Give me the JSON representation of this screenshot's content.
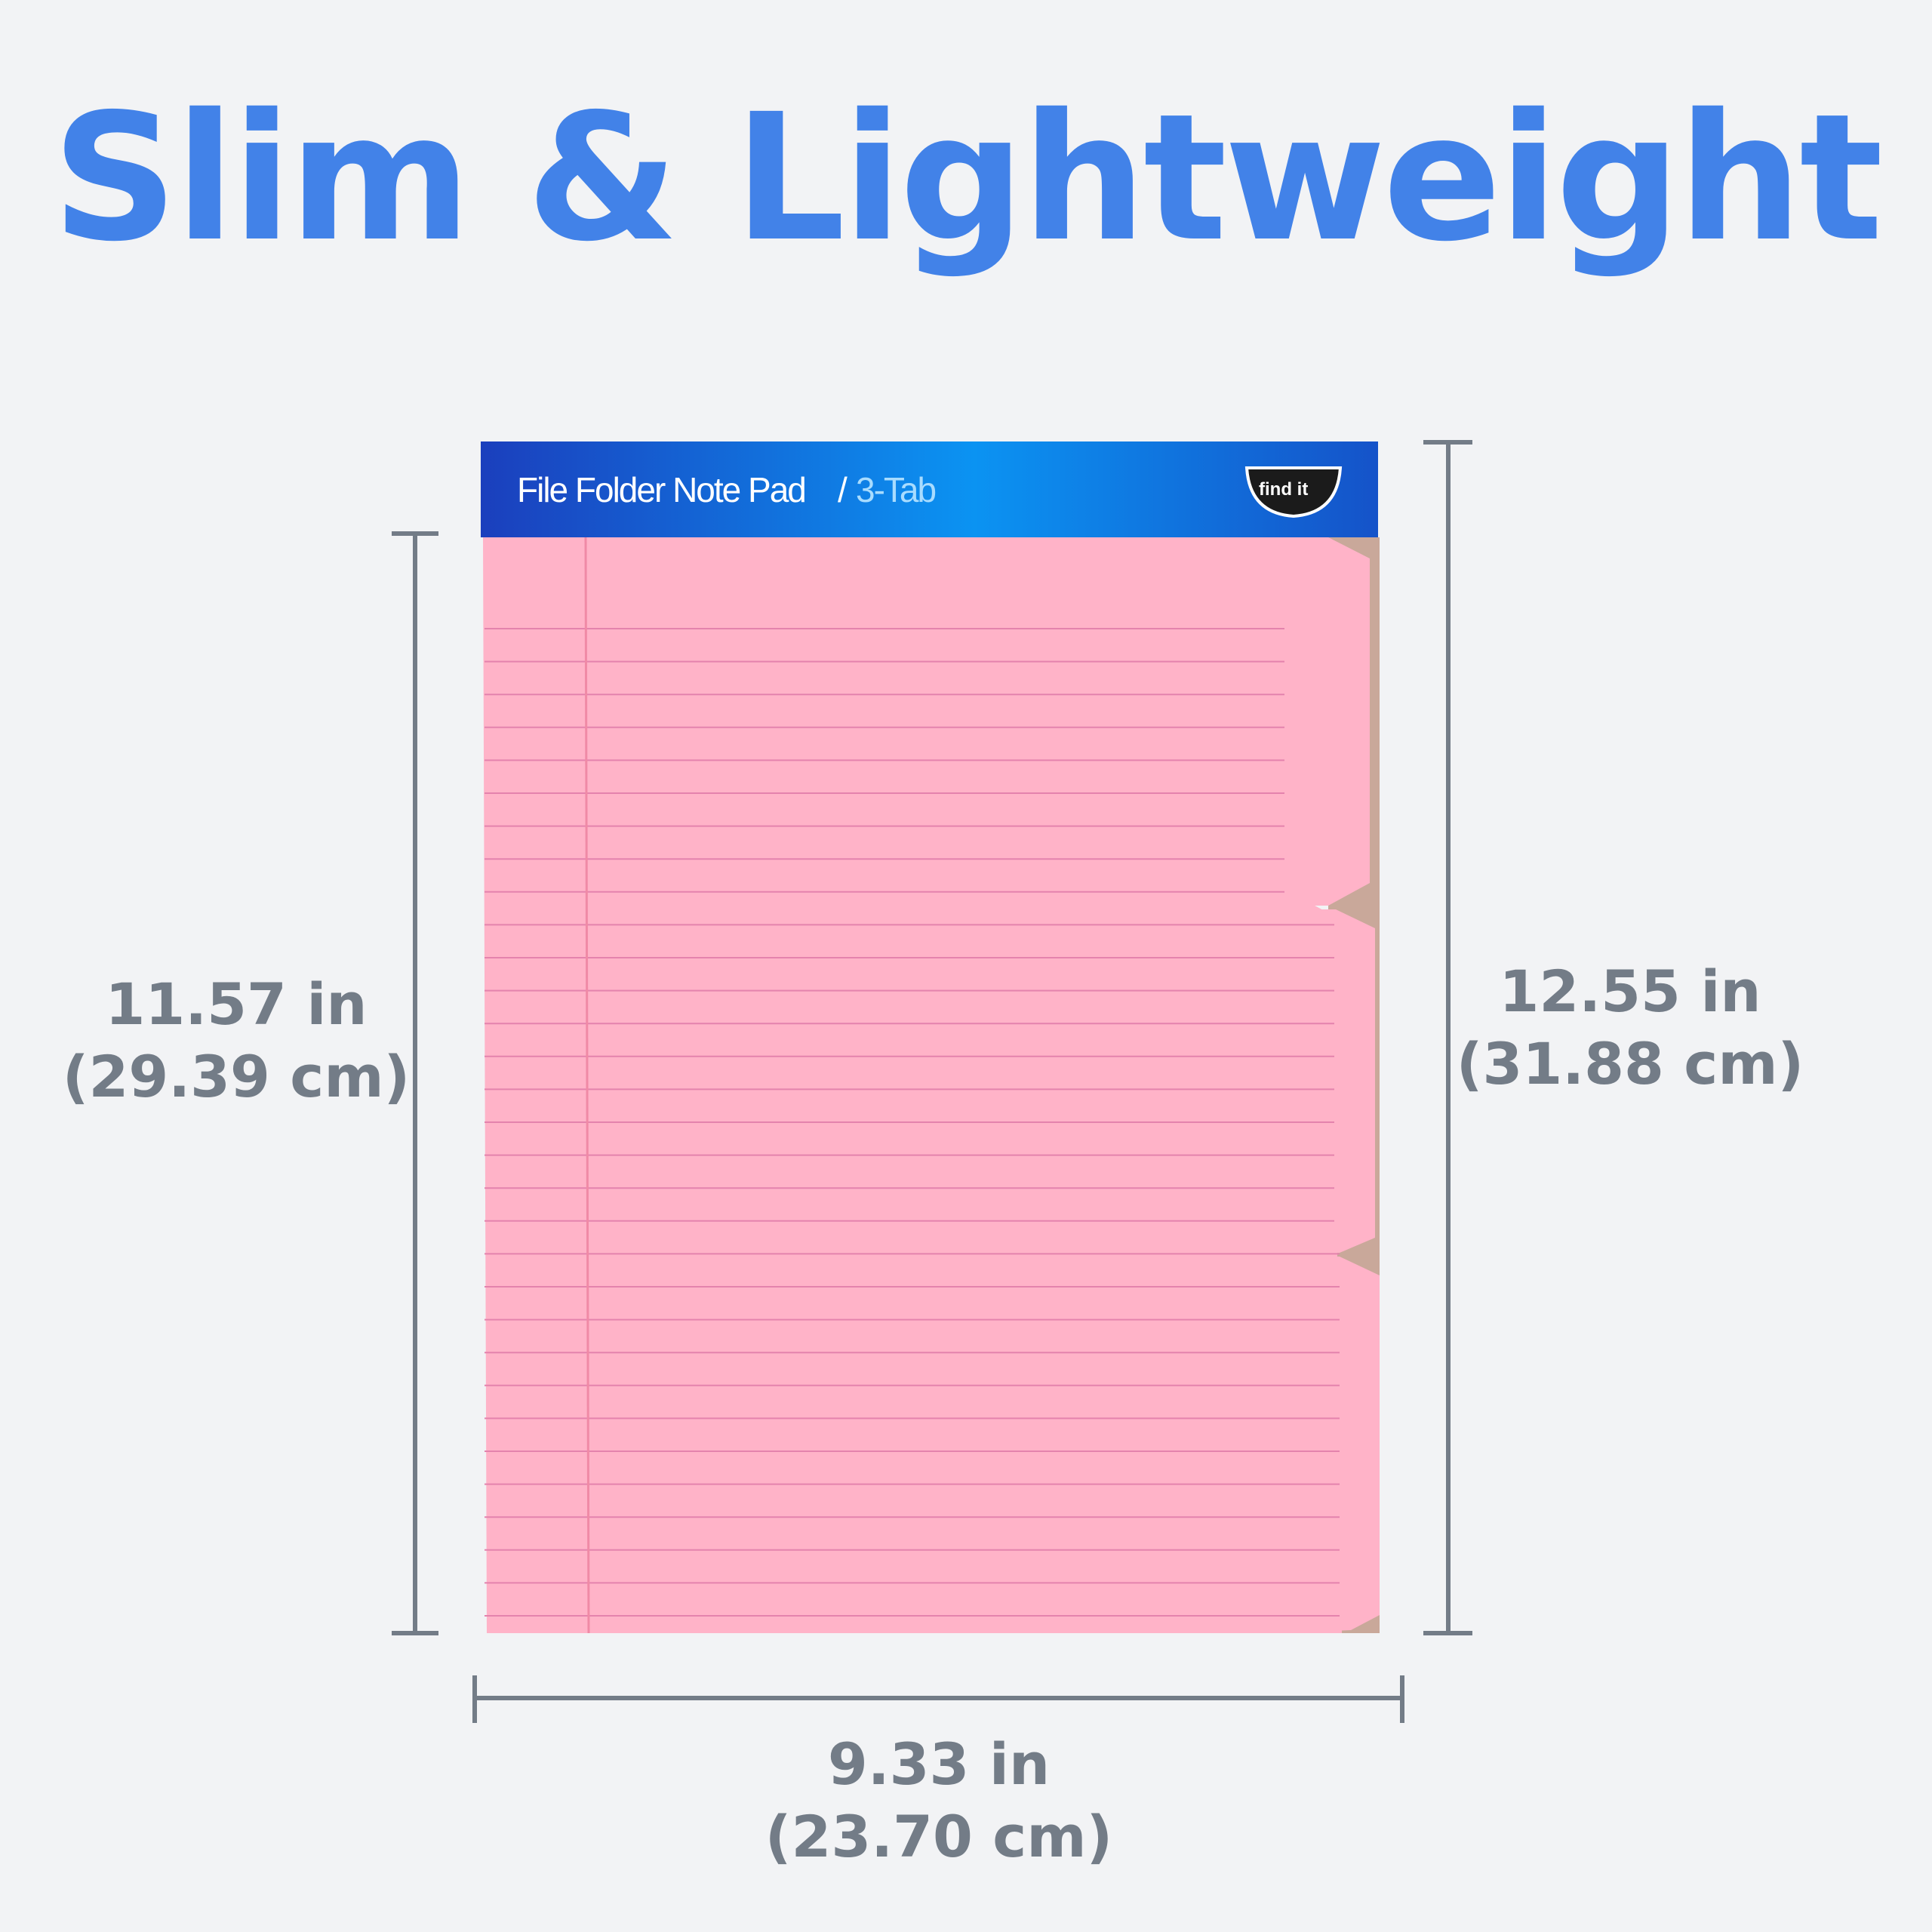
{
  "title": "Slim & Lightweight",
  "product": {
    "header_title": "File Folder Note Pad",
    "header_separator": "/",
    "header_subtitle": "3-Tab",
    "brand_logo": "find it",
    "colors": {
      "header_start": "#1a3fbf",
      "header_mid": "#0f8ff0",
      "paper": "#ffb3c8",
      "rule": "#e07aa8",
      "accent": "#4282e8",
      "dimension": "#737c87"
    }
  },
  "dimensions": {
    "left": {
      "imperial": "11.57 in",
      "metric": "(29.39 cm)"
    },
    "right": {
      "imperial": "12.55 in",
      "metric": "(31.88 cm)"
    },
    "bottom": {
      "imperial": "9.33 in",
      "metric": "(23.70 cm)"
    }
  }
}
